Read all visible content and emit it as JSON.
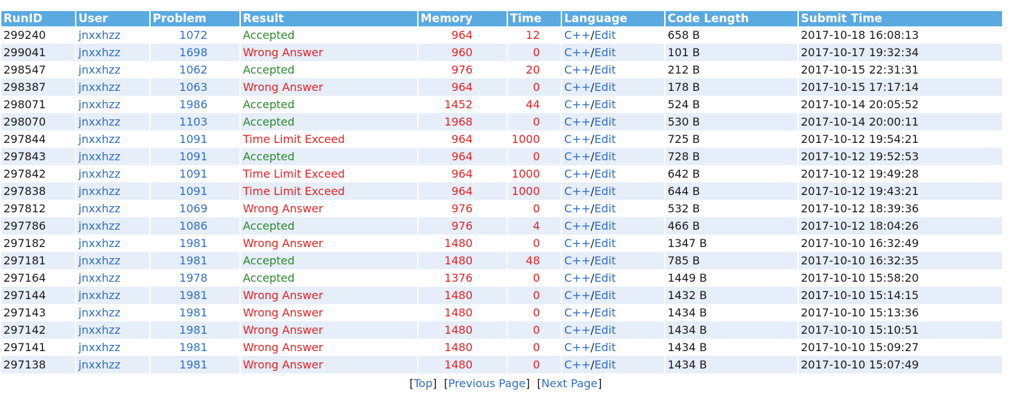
{
  "headers": [
    "RunID",
    "User",
    "Problem",
    "Result",
    "Memory",
    "Time",
    "Language",
    "Code Length",
    "Submit Time"
  ],
  "rows": [
    {
      "runid": "299240",
      "user": "jnxxhzz",
      "problem": "1072",
      "result": "Accepted",
      "ok": true,
      "memory": "964",
      "time": "12",
      "lang": "C++",
      "edit": "Edit",
      "length": "658 B",
      "submit": "2017-10-18 16:08:13"
    },
    {
      "runid": "299041",
      "user": "jnxxhzz",
      "problem": "1698",
      "result": "Wrong Answer",
      "ok": false,
      "memory": "960",
      "time": "0",
      "lang": "C++",
      "edit": "Edit",
      "length": "101 B",
      "submit": "2017-10-17 19:32:34"
    },
    {
      "runid": "298547",
      "user": "jnxxhzz",
      "problem": "1062",
      "result": "Accepted",
      "ok": true,
      "memory": "976",
      "time": "20",
      "lang": "C++",
      "edit": "Edit",
      "length": "212 B",
      "submit": "2017-10-15 22:31:31"
    },
    {
      "runid": "298387",
      "user": "jnxxhzz",
      "problem": "1063",
      "result": "Wrong Answer",
      "ok": false,
      "memory": "964",
      "time": "0",
      "lang": "C++",
      "edit": "Edit",
      "length": "178 B",
      "submit": "2017-10-15 17:17:14"
    },
    {
      "runid": "298071",
      "user": "jnxxhzz",
      "problem": "1986",
      "result": "Accepted",
      "ok": true,
      "memory": "1452",
      "time": "44",
      "lang": "C++",
      "edit": "Edit",
      "length": "524 B",
      "submit": "2017-10-14 20:05:52"
    },
    {
      "runid": "298070",
      "user": "jnxxhzz",
      "problem": "1103",
      "result": "Accepted",
      "ok": true,
      "memory": "1968",
      "time": "0",
      "lang": "C++",
      "edit": "Edit",
      "length": "530 B",
      "submit": "2017-10-14 20:00:11"
    },
    {
      "runid": "297844",
      "user": "jnxxhzz",
      "problem": "1091",
      "result": "Time Limit Exceed",
      "ok": false,
      "memory": "964",
      "time": "1000",
      "lang": "C++",
      "edit": "Edit",
      "length": "725 B",
      "submit": "2017-10-12 19:54:21"
    },
    {
      "runid": "297843",
      "user": "jnxxhzz",
      "problem": "1091",
      "result": "Accepted",
      "ok": true,
      "memory": "964",
      "time": "0",
      "lang": "C++",
      "edit": "Edit",
      "length": "728 B",
      "submit": "2017-10-12 19:52:53"
    },
    {
      "runid": "297842",
      "user": "jnxxhzz",
      "problem": "1091",
      "result": "Time Limit Exceed",
      "ok": false,
      "memory": "964",
      "time": "1000",
      "lang": "C++",
      "edit": "Edit",
      "length": "642 B",
      "submit": "2017-10-12 19:49:28"
    },
    {
      "runid": "297838",
      "user": "jnxxhzz",
      "problem": "1091",
      "result": "Time Limit Exceed",
      "ok": false,
      "memory": "964",
      "time": "1000",
      "lang": "C++",
      "edit": "Edit",
      "length": "644 B",
      "submit": "2017-10-12 19:43:21"
    },
    {
      "runid": "297812",
      "user": "jnxxhzz",
      "problem": "1069",
      "result": "Wrong Answer",
      "ok": false,
      "memory": "976",
      "time": "0",
      "lang": "C++",
      "edit": "Edit",
      "length": "532 B",
      "submit": "2017-10-12 18:39:36"
    },
    {
      "runid": "297786",
      "user": "jnxxhzz",
      "problem": "1086",
      "result": "Accepted",
      "ok": true,
      "memory": "976",
      "time": "4",
      "lang": "C++",
      "edit": "Edit",
      "length": "466 B",
      "submit": "2017-10-12 18:04:26"
    },
    {
      "runid": "297182",
      "user": "jnxxhzz",
      "problem": "1981",
      "result": "Wrong Answer",
      "ok": false,
      "memory": "1480",
      "time": "0",
      "lang": "C++",
      "edit": "Edit",
      "length": "1347 B",
      "submit": "2017-10-10 16:32:49"
    },
    {
      "runid": "297181",
      "user": "jnxxhzz",
      "problem": "1981",
      "result": "Accepted",
      "ok": true,
      "memory": "1480",
      "time": "48",
      "lang": "C++",
      "edit": "Edit",
      "length": "785 B",
      "submit": "2017-10-10 16:32:35"
    },
    {
      "runid": "297164",
      "user": "jnxxhzz",
      "problem": "1978",
      "result": "Accepted",
      "ok": true,
      "memory": "1376",
      "time": "0",
      "lang": "C++",
      "edit": "Edit",
      "length": "1449 B",
      "submit": "2017-10-10 15:58:20"
    },
    {
      "runid": "297144",
      "user": "jnxxhzz",
      "problem": "1981",
      "result": "Wrong Answer",
      "ok": false,
      "memory": "1480",
      "time": "0",
      "lang": "C++",
      "edit": "Edit",
      "length": "1432 B",
      "submit": "2017-10-10 15:14:15"
    },
    {
      "runid": "297143",
      "user": "jnxxhzz",
      "problem": "1981",
      "result": "Wrong Answer",
      "ok": false,
      "memory": "1480",
      "time": "0",
      "lang": "C++",
      "edit": "Edit",
      "length": "1434 B",
      "submit": "2017-10-10 15:13:36"
    },
    {
      "runid": "297142",
      "user": "jnxxhzz",
      "problem": "1981",
      "result": "Wrong Answer",
      "ok": false,
      "memory": "1480",
      "time": "0",
      "lang": "C++",
      "edit": "Edit",
      "length": "1434 B",
      "submit": "2017-10-10 15:10:51"
    },
    {
      "runid": "297141",
      "user": "jnxxhzz",
      "problem": "1981",
      "result": "Wrong Answer",
      "ok": false,
      "memory": "1480",
      "time": "0",
      "lang": "C++",
      "edit": "Edit",
      "length": "1434 B",
      "submit": "2017-10-10 15:09:27"
    },
    {
      "runid": "297138",
      "user": "jnxxhzz",
      "problem": "1981",
      "result": "Wrong Answer",
      "ok": false,
      "memory": "1480",
      "time": "0",
      "lang": "C++",
      "edit": "Edit",
      "length": "1434 B",
      "submit": "2017-10-10 15:07:49"
    }
  ],
  "pager": {
    "top": "Top",
    "prev": "Previous Page",
    "next": "Next Page"
  },
  "colors": {
    "header_bg": "#5aa9e0",
    "row_alt": "#e6eef9",
    "link": "#2f6fc7",
    "accepted": "#2a8a2a",
    "error": "#e52222"
  }
}
